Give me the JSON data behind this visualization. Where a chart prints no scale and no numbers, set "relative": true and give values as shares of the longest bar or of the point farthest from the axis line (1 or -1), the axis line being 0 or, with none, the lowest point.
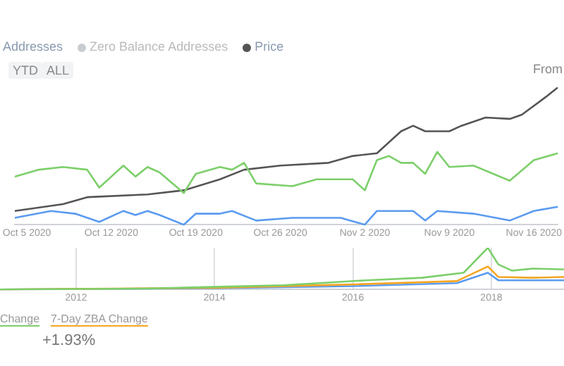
{
  "chart_data": [
    {
      "type": "line",
      "relative": true,
      "legend": "top left",
      "marker": "none",
      "line_style": "solid",
      "annotations": [
        "Addresses",
        "Zero Balance Addresses",
        "YTD",
        "ALL",
        "From",
        "Change",
        "7-Day ZBA Change",
        "+1.93%"
      ],
      "xlim": [
        "2020-10-04",
        "2020-11-18"
      ],
      "xticks": [
        {
          "value": "2020-10-05",
          "label": "Oct 5 2020"
        },
        {
          "value": "2020-10-12",
          "label": "Oct 12 2020"
        },
        {
          "value": "2020-10-19",
          "label": "Oct 19 2020"
        },
        {
          "value": "2020-10-26",
          "label": "Oct 26 2020"
        },
        {
          "value": "2020-11-02",
          "label": "Nov 2 2020"
        },
        {
          "value": "2020-11-09",
          "label": "Nov 9 2020"
        },
        {
          "value": "2020-11-16",
          "label": "Nov 16 2020"
        }
      ],
      "series": [
        {
          "color": "#7ccf6a",
          "x": [
            "2020-10-04",
            "2020-10-06",
            "2020-10-08",
            "2020-10-10",
            "2020-10-11",
            "2020-10-13",
            "2020-10-14",
            "2020-10-15",
            "2020-10-16",
            "2020-10-18",
            "2020-10-19",
            "2020-10-21",
            "2020-10-22",
            "2020-10-23",
            "2020-10-24",
            "2020-10-27",
            "2020-10-29",
            "2020-11-01",
            "2020-11-02",
            "2020-11-03",
            "2020-11-04",
            "2020-11-05",
            "2020-11-06",
            "2020-11-07",
            "2020-11-08",
            "2020-11-09",
            "2020-11-11",
            "2020-11-14",
            "2020-11-16",
            "2020-11-18"
          ],
          "values": [
            0.35,
            0.4,
            0.42,
            0.4,
            0.27,
            0.43,
            0.35,
            0.42,
            0.38,
            0.23,
            0.37,
            0.42,
            0.4,
            0.45,
            0.3,
            0.28,
            0.33,
            0.33,
            0.25,
            0.47,
            0.5,
            0.45,
            0.45,
            0.37,
            0.53,
            0.42,
            0.43,
            0.32,
            0.47,
            0.52
          ]
        },
        {
          "color": "#5b9bf0",
          "x": [
            "2020-10-04",
            "2020-10-07",
            "2020-10-09",
            "2020-10-11",
            "2020-10-13",
            "2020-10-14",
            "2020-10-15",
            "2020-10-16",
            "2020-10-18",
            "2020-10-19",
            "2020-10-21",
            "2020-10-22",
            "2020-10-24",
            "2020-10-27",
            "2020-10-31",
            "2020-11-02",
            "2020-11-03",
            "2020-11-06",
            "2020-11-07",
            "2020-11-08",
            "2020-11-11",
            "2020-11-14",
            "2020-11-16",
            "2020-11-18"
          ],
          "values": [
            0.05,
            0.1,
            0.08,
            0.02,
            0.1,
            0.07,
            0.1,
            0.07,
            0,
            0.08,
            0.08,
            0.1,
            0.03,
            0.05,
            0.05,
            0,
            0.1,
            0.1,
            0.03,
            0.1,
            0.08,
            0.03,
            0.1,
            0.13
          ]
        },
        {
          "name": "Price",
          "color": "#555555",
          "x": [
            "2020-10-04",
            "2020-10-08",
            "2020-10-10",
            "2020-10-15",
            "2020-10-18",
            "2020-10-21",
            "2020-10-23",
            "2020-10-26",
            "2020-10-30",
            "2020-11-01",
            "2020-11-03",
            "2020-11-05",
            "2020-11-06",
            "2020-11-07",
            "2020-11-09",
            "2020-11-10",
            "2020-11-12",
            "2020-11-14",
            "2020-11-15",
            "2020-11-17",
            "2020-11-18"
          ],
          "values": [
            0.1,
            0.15,
            0.2,
            0.22,
            0.25,
            0.33,
            0.4,
            0.43,
            0.45,
            0.5,
            0.52,
            0.68,
            0.72,
            0.68,
            0.68,
            0.72,
            0.78,
            0.77,
            0.8,
            0.93,
            1
          ]
        }
      ]
    },
    {
      "type": "line",
      "relative": true,
      "grid": "x",
      "marker": "none",
      "line_style": "solid",
      "xlim": [
        2010.9,
        2019.05
      ],
      "xticks": [
        2012,
        2014,
        2016,
        2018
      ],
      "series": [
        {
          "color": "#7ccf6a",
          "x": [
            2010.9,
            2013,
            2014,
            2015,
            2015.6,
            2016.2,
            2017,
            2017.6,
            2017.95,
            2018.1,
            2018.3,
            2018.6,
            2019.05
          ],
          "values": [
            0,
            0.02,
            0.06,
            0.1,
            0.16,
            0.22,
            0.28,
            0.4,
            1,
            0.6,
            0.45,
            0.5,
            0.48
          ]
        },
        {
          "color": "#f5a623",
          "x": [
            2010.9,
            2014,
            2016,
            2017.5,
            2017.95,
            2018.1,
            2018.6,
            2019.05
          ],
          "values": [
            0,
            0.04,
            0.12,
            0.2,
            0.55,
            0.3,
            0.28,
            0.3
          ]
        },
        {
          "color": "#5b9bf0",
          "x": [
            2010.9,
            2014,
            2016,
            2017.5,
            2017.95,
            2018.1,
            2019.05
          ],
          "values": [
            0,
            0.03,
            0.08,
            0.15,
            0.4,
            0.22,
            0.22
          ]
        }
      ]
    }
  ]
}
